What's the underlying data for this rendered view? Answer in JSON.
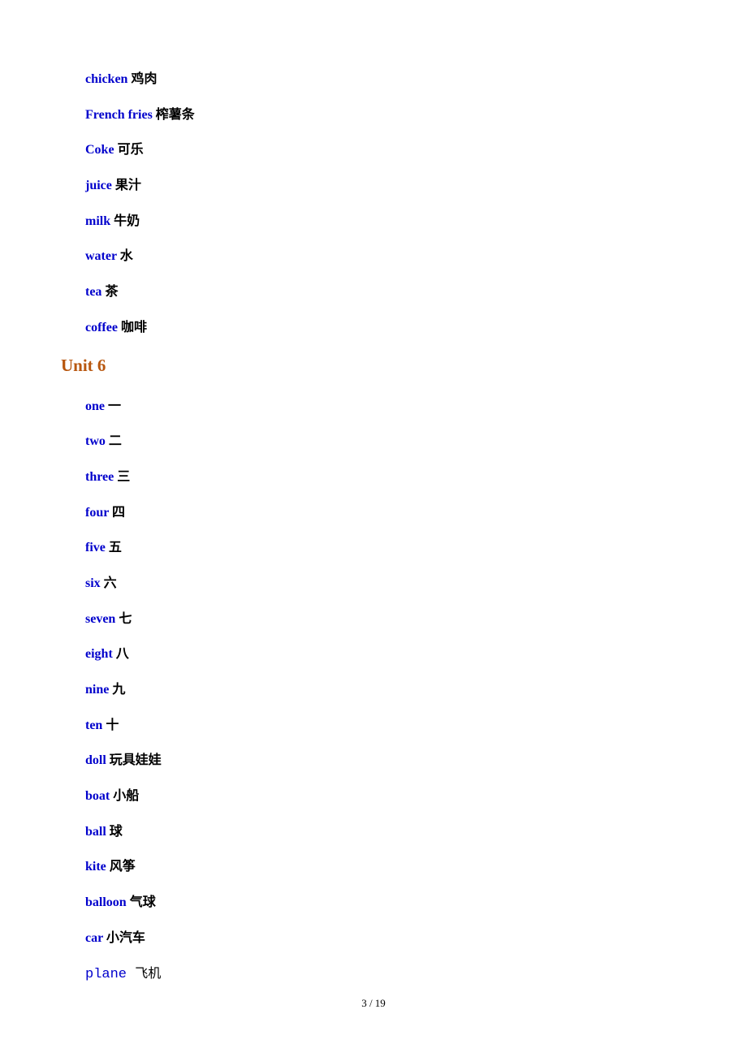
{
  "colors": {
    "english_text": "#0000cc",
    "chinese_text": "#000000",
    "heading_text": "#b8570f",
    "background": "#ffffff"
  },
  "typography": {
    "entry_fontsize": 16,
    "heading_fontsize": 21,
    "pagenum_fontsize": 13,
    "entry_font": "Times New Roman",
    "mono_font": "Courier New"
  },
  "section1": {
    "entries": [
      {
        "en": "chicken",
        "zh": " 鸡肉"
      },
      {
        "en": "French fries",
        "zh": " 榨薯条"
      },
      {
        "en": "Coke",
        "zh": " 可乐"
      },
      {
        "en": "juice",
        "zh": " 果汁"
      },
      {
        "en": "milk",
        "zh": " 牛奶"
      },
      {
        "en": "water",
        "zh": " 水"
      },
      {
        "en": "tea",
        "zh": " 茶"
      },
      {
        "en": "coffee",
        "zh": " 咖啡"
      }
    ]
  },
  "heading": "Unit 6",
  "section2": {
    "entries": [
      {
        "en": "one",
        "zh": " 一"
      },
      {
        "en": "two",
        "zh": " 二"
      },
      {
        "en": "three",
        "zh": " 三"
      },
      {
        "en": "four",
        "zh": " 四"
      },
      {
        "en": "five",
        "zh": " 五"
      },
      {
        "en": "six",
        "zh": " 六"
      },
      {
        "en": "seven",
        "zh": " 七"
      },
      {
        "en": "eight",
        "zh": " 八"
      },
      {
        "en": "nine",
        "zh": " 九"
      },
      {
        "en": "ten",
        "zh": " 十"
      },
      {
        "en": "doll",
        "zh": " 玩具娃娃"
      },
      {
        "en": "boat",
        "zh": " 小船"
      },
      {
        "en": "ball",
        "zh": " 球"
      },
      {
        "en": "kite",
        "zh": " 风筝"
      },
      {
        "en": "balloon",
        "zh": " 气球"
      },
      {
        "en": "car",
        "zh": " 小汽车"
      }
    ]
  },
  "last_entry": {
    "en": "plane ",
    "zh": " 飞机"
  },
  "pagenum": "3 / 19"
}
